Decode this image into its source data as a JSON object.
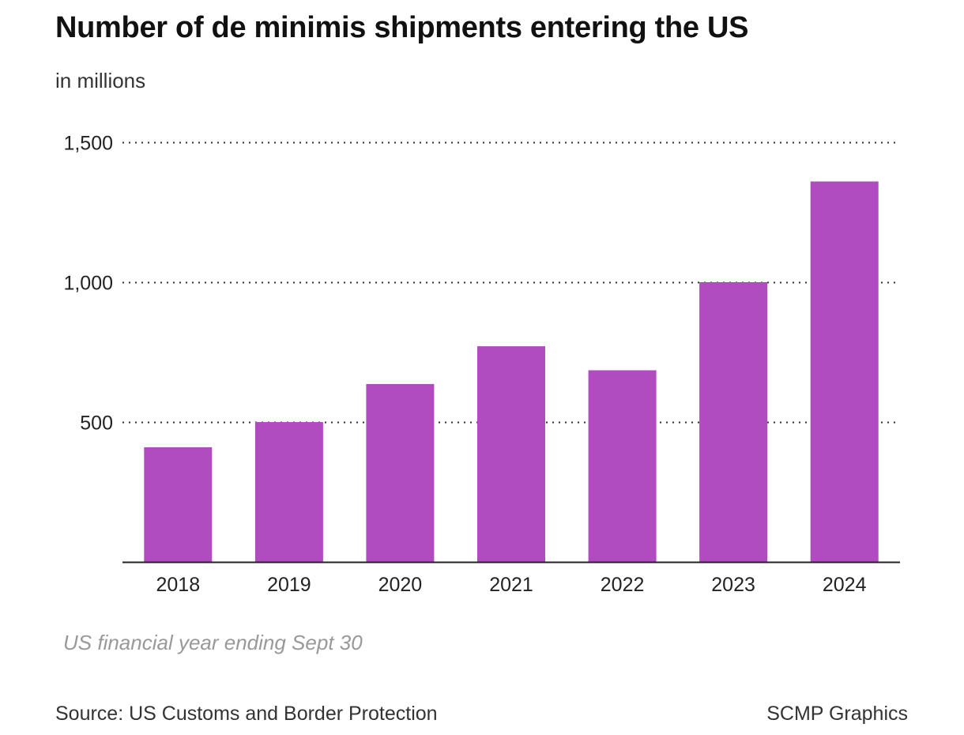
{
  "chart_data": {
    "type": "bar",
    "title": "Number of de minimis shipments entering the US",
    "subtitle": "in millions",
    "categories": [
      "2018",
      "2019",
      "2020",
      "2021",
      "2022",
      "2023",
      "2024"
    ],
    "values": [
      410,
      500,
      636,
      771,
      685,
      1000,
      1360
    ],
    "ylim": [
      0,
      1500
    ],
    "yticks": [
      500,
      1000,
      1500
    ],
    "ytick_labels": [
      "500",
      "1,000",
      "1,500"
    ],
    "xlabel": "",
    "ylabel": "",
    "grid": true,
    "bar_color": "#b04cc0",
    "note": "US financial year ending Sept 30"
  },
  "footer": {
    "source": "Source: US Customs and Border Protection",
    "credit": "SCMP Graphics"
  }
}
